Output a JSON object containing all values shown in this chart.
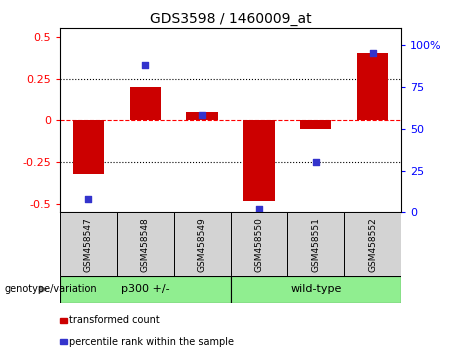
{
  "title": "GDS3598 / 1460009_at",
  "samples": [
    "GSM458547",
    "GSM458548",
    "GSM458549",
    "GSM458550",
    "GSM458551",
    "GSM458552"
  ],
  "bar_values": [
    -0.32,
    0.2,
    0.05,
    -0.48,
    -0.05,
    0.4
  ],
  "scatter_values": [
    8,
    88,
    58,
    2,
    30,
    95
  ],
  "group_label": "genotype/variation",
  "group_ranges": [
    [
      0,
      3,
      "p300 +/-"
    ],
    [
      3,
      6,
      "wild-type"
    ]
  ],
  "bar_color": "#CC0000",
  "scatter_color": "#3333CC",
  "group_color": "#90EE90",
  "sample_box_color": "#D3D3D3",
  "ylim": [
    -0.55,
    0.55
  ],
  "y2lim": [
    0,
    110
  ],
  "yticks_left": [
    -0.5,
    -0.25,
    0,
    0.25,
    0.5
  ],
  "yticks_right": [
    0,
    25,
    50,
    75,
    100
  ],
  "dotted_lines": [
    -0.25,
    0.25
  ],
  "bar_width": 0.55,
  "legend_labels": [
    "transformed count",
    "percentile rank within the sample"
  ],
  "legend_colors": [
    "#CC0000",
    "#3333CC"
  ]
}
